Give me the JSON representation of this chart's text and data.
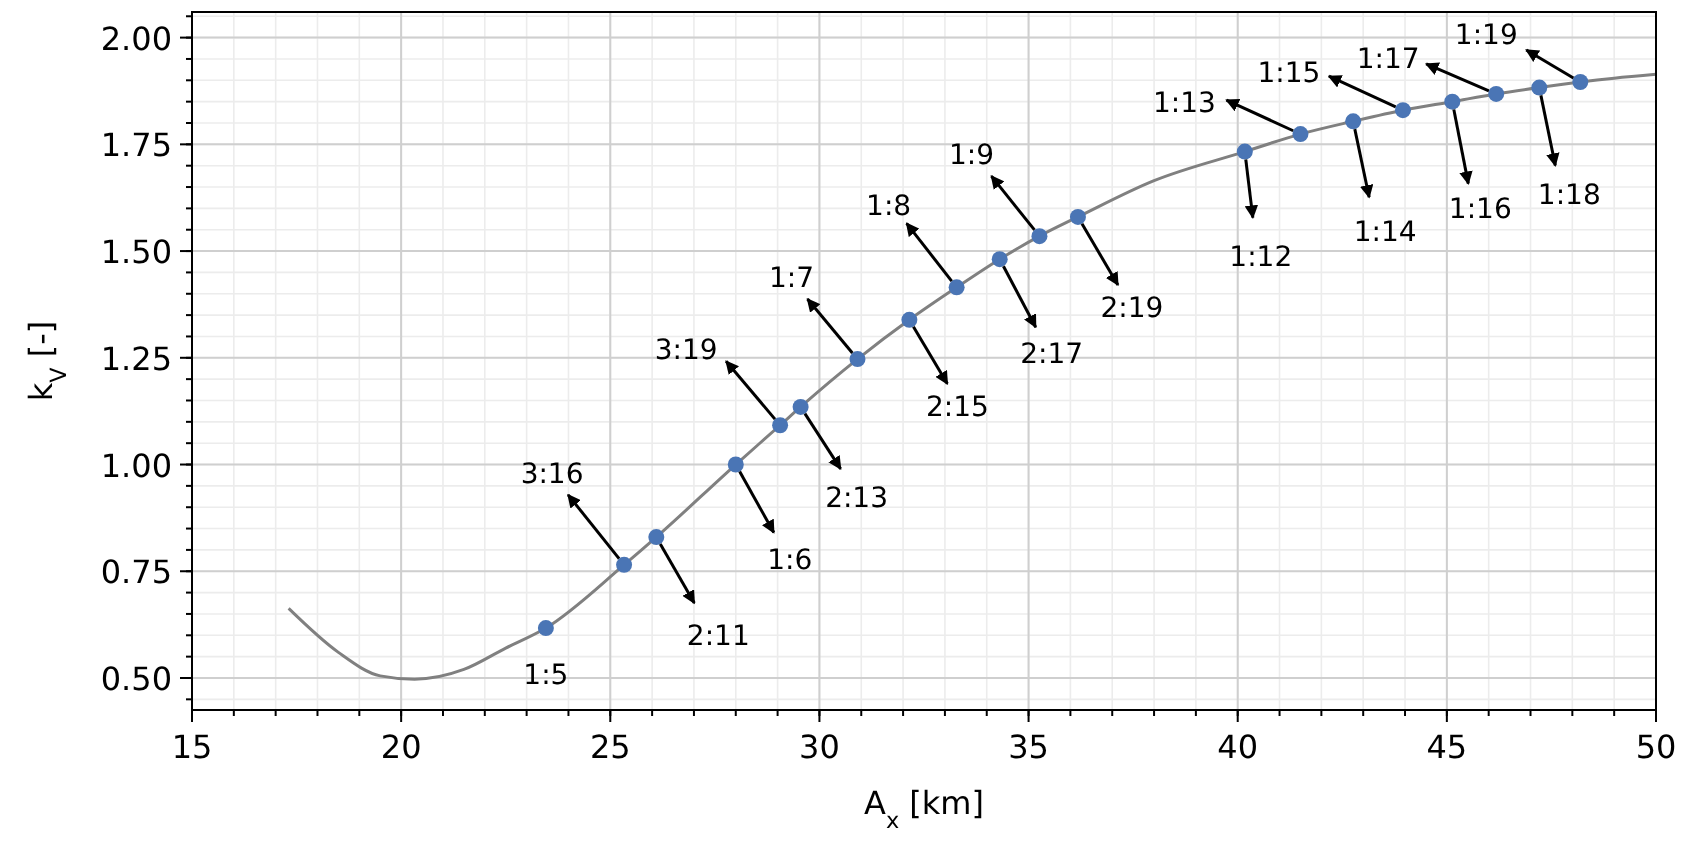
{
  "chart_data": {
    "type": "line",
    "xlabel": "A$_{x}$ [km]",
    "ylabel": "k$_{V}$ [-]",
    "xlim": [
      15,
      50
    ],
    "ylim": [
      0.425,
      2.06
    ],
    "xticks": [
      15,
      20,
      25,
      30,
      35,
      40,
      45,
      50
    ],
    "yticks": [
      {
        "value": 0.5,
        "label": "0.50"
      },
      {
        "value": 0.75,
        "label": "0.75"
      },
      {
        "value": 1,
        "label": "1.00"
      },
      {
        "value": 1.25,
        "label": "1.25"
      },
      {
        "value": 1.5,
        "label": "1.50"
      },
      {
        "value": 1.75,
        "label": "1.75"
      },
      {
        "value": 2,
        "label": "2.00"
      }
    ],
    "grid": true,
    "series": [
      {
        "color": "#808080",
        "marker": "none",
        "x": [
          17.31,
          18.5,
          19.5,
          20.32,
          21.5,
          22.5,
          23.46,
          25.33,
          26.1,
          28.0,
          29.06,
          29.55,
          30.91,
          32.15,
          33.28,
          34.31,
          35.26,
          36.18,
          38.0,
          40.17,
          41.5,
          42.76,
          43.95,
          45.13,
          46.18,
          47.21,
          48.19,
          49.0,
          50.0
        ],
        "values": [
          0.663,
          0.56,
          0.505,
          0.497,
          0.52,
          0.57,
          0.617,
          0.765,
          0.83,
          1.0,
          1.092,
          1.135,
          1.247,
          1.339,
          1.415,
          1.481,
          1.535,
          1.58,
          1.665,
          1.733,
          1.774,
          1.804,
          1.83,
          1.85,
          1.868,
          1.883,
          1.896,
          1.905,
          1.914
        ]
      },
      {
        "type": "scatter",
        "color": "#4a75b5",
        "marker": "circle",
        "x": [
          23.46,
          25.33,
          26.1,
          28.0,
          29.06,
          29.55,
          30.91,
          32.15,
          33.28,
          34.31,
          35.26,
          36.18,
          40.17,
          41.5,
          42.76,
          43.95,
          45.13,
          46.18,
          47.21,
          48.19
        ],
        "values": [
          0.617,
          0.765,
          0.83,
          1.0,
          1.092,
          1.135,
          1.247,
          1.339,
          1.415,
          1.481,
          1.535,
          1.58,
          1.733,
          1.774,
          1.804,
          1.83,
          1.85,
          1.868,
          1.883,
          1.896
        ]
      }
    ],
    "annotations": [
      {
        "text": "1:5",
        "x": 23.46,
        "y": 0.617
      },
      {
        "text": "3:16",
        "x": 25.33,
        "y": 0.765
      },
      {
        "text": "2:11",
        "x": 26.1,
        "y": 0.83
      },
      {
        "text": "1:6",
        "x": 28.0,
        "y": 1.0
      },
      {
        "text": "3:19",
        "x": 29.06,
        "y": 1.092
      },
      {
        "text": "2:13",
        "x": 29.55,
        "y": 1.135
      },
      {
        "text": "1:7",
        "x": 30.91,
        "y": 1.247
      },
      {
        "text": "2:15",
        "x": 32.15,
        "y": 1.339
      },
      {
        "text": "1:8",
        "x": 33.28,
        "y": 1.415
      },
      {
        "text": "2:17",
        "x": 34.31,
        "y": 1.481
      },
      {
        "text": "1:9",
        "x": 35.26,
        "y": 1.535
      },
      {
        "text": "2:19",
        "x": 36.18,
        "y": 1.58
      },
      {
        "text": "1:12",
        "x": 40.17,
        "y": 1.733
      },
      {
        "text": "1:13",
        "x": 41.5,
        "y": 1.774
      },
      {
        "text": "1:14",
        "x": 42.76,
        "y": 1.804
      },
      {
        "text": "1:15",
        "x": 43.95,
        "y": 1.83
      },
      {
        "text": "1:16",
        "x": 45.13,
        "y": 1.85
      },
      {
        "text": "1:17",
        "x": 46.18,
        "y": 1.868
      },
      {
        "text": "1:18",
        "x": 47.21,
        "y": 1.883
      },
      {
        "text": "1:19",
        "x": 48.19,
        "y": 1.896
      }
    ]
  }
}
